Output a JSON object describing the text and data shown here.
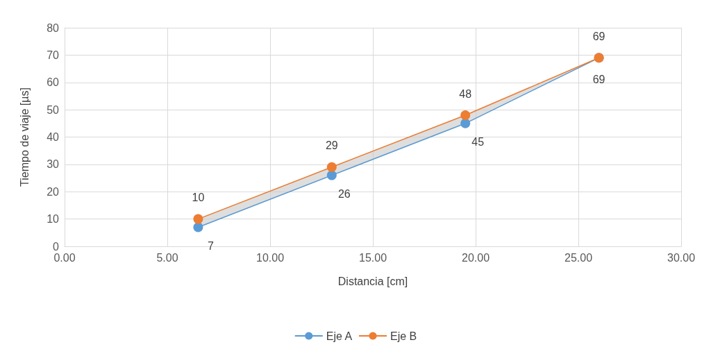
{
  "chart_data": {
    "type": "line",
    "xlabel": "Distancia [cm]",
    "ylabel": "Tiempo de viaje [µs]",
    "x": [
      6.5,
      13,
      19.5,
      26
    ],
    "series": [
      {
        "name": "Eje A",
        "color": "#5b9bd5",
        "values": [
          7,
          26,
          45,
          69
        ],
        "lower": [
          7,
          26,
          45,
          69
        ],
        "upper": [
          10,
          29,
          48,
          69
        ]
      },
      {
        "name": "Eje B",
        "color": "#ed7d31",
        "values": [
          10,
          29,
          48,
          69
        ]
      }
    ],
    "xlim": [
      0,
      30
    ],
    "xticks": [
      {
        "value": 0,
        "label": "0.00"
      },
      {
        "value": 5,
        "label": "5.00"
      },
      {
        "value": 10,
        "label": "10.00"
      },
      {
        "value": 15,
        "label": "15.00"
      },
      {
        "value": 20,
        "label": "20.00"
      },
      {
        "value": 25,
        "label": "25.00"
      },
      {
        "value": 30,
        "label": "30.00"
      }
    ],
    "ylim": [
      0,
      80
    ],
    "yticks": [
      0,
      10,
      20,
      30,
      40,
      50,
      60,
      70,
      80
    ],
    "grid": true,
    "legend": "bottom",
    "marker": "circle",
    "data_labels": true
  }
}
